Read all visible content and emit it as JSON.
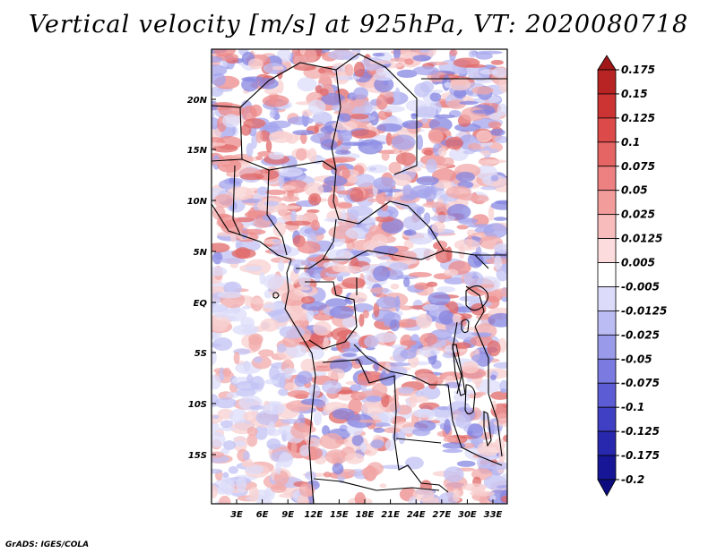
{
  "title": "Vertical velocity [m/s] at 925hPa, VT: 2020080718",
  "footer": "GrADS: IGES/COLA",
  "map": {
    "region": "Central Africa",
    "field": "vertical velocity",
    "level": "925hPa",
    "valid_time": "2020080718",
    "lat_labels": [
      "20N",
      "15N",
      "10N",
      "5N",
      "EQ",
      "5S",
      "10S",
      "15S"
    ],
    "lon_labels": [
      "3E",
      "6E",
      "9E",
      "12E",
      "15E",
      "18E",
      "21E",
      "24E",
      "27E",
      "30E",
      "33E"
    ]
  },
  "colorbar": {
    "levels": [
      "0.175",
      "0.15",
      "0.125",
      "0.1",
      "0.075",
      "0.05",
      "0.025",
      "0.0125",
      "0.005",
      "-0.005",
      "-0.0125",
      "-0.025",
      "-0.05",
      "-0.075",
      "-0.1",
      "-0.125",
      "-0.175",
      "-0.2"
    ],
    "colors": [
      "#a01818",
      "#b82424",
      "#cc3434",
      "#dd4a4a",
      "#e56464",
      "#ed8080",
      "#f39c9c",
      "#f8bcbc",
      "#fcdcdc",
      "#ffffff",
      "#dcdcfa",
      "#bcbcf4",
      "#9a9aea",
      "#7a7ae0",
      "#5c5cd4",
      "#4040c4",
      "#2828ae",
      "#161696",
      "#0c0c80"
    ]
  }
}
